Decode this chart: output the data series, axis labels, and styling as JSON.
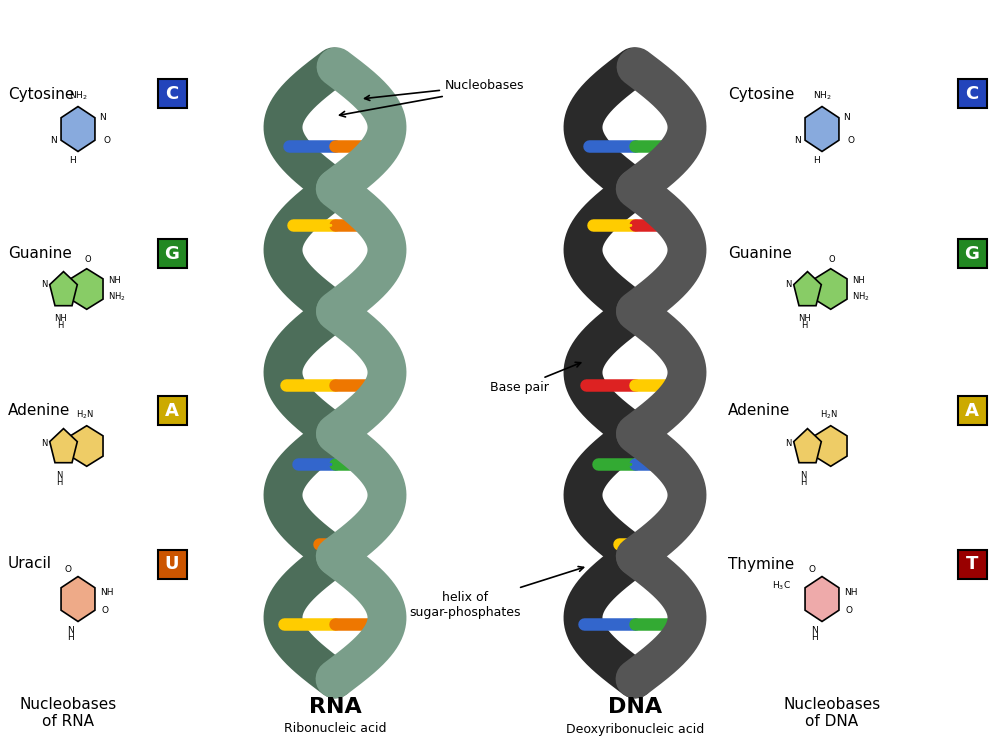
{
  "background_color": "#ffffff",
  "rna_label": "RNA",
  "rna_sublabel": "Ribonucleic acid",
  "dna_label": "DNA",
  "dna_sublabel": "Deoxyribonucleic acid",
  "rna_strand_color": "#7a9e8a",
  "rna_strand_dark": "#4d6e5a",
  "rna_strand_edge": "#333333",
  "dna_strand_color": "#555555",
  "dna_strand_dark": "#2a2a2a",
  "dna_strand_edge": "#111111",
  "nucleobase_colors": {
    "blue": "#3366cc",
    "green": "#33aa33",
    "yellow": "#ffcc00",
    "red": "#dd2222",
    "orange": "#ee7700"
  },
  "left_bases": [
    {
      "name": "Cytosine",
      "letter": "C",
      "bg": "#2244bb",
      "struct_color": "#88aadd",
      "text_color": "white"
    },
    {
      "name": "Guanine",
      "letter": "G",
      "bg": "#228822",
      "struct_color": "#88cc66",
      "text_color": "white"
    },
    {
      "name": "Adenine",
      "letter": "A",
      "bg": "#ccaa00",
      "struct_color": "#eecc66",
      "text_color": "white"
    },
    {
      "name": "Uracil",
      "letter": "U",
      "bg": "#cc5500",
      "struct_color": "#eeaa88",
      "text_color": "white"
    }
  ],
  "right_bases": [
    {
      "name": "Cytosine",
      "letter": "C",
      "bg": "#2244bb",
      "struct_color": "#88aadd",
      "text_color": "white"
    },
    {
      "name": "Guanine",
      "letter": "G",
      "bg": "#228822",
      "struct_color": "#88cc66",
      "text_color": "white"
    },
    {
      "name": "Adenine",
      "letter": "A",
      "bg": "#ccaa00",
      "struct_color": "#eecc66",
      "text_color": "white"
    },
    {
      "name": "Thymine",
      "letter": "T",
      "bg": "#990000",
      "struct_color": "#eeaaaa",
      "text_color": "white"
    }
  ],
  "left_footer": "Nucleobases\nof RNA",
  "right_footer": "Nucleobases\nof DNA"
}
